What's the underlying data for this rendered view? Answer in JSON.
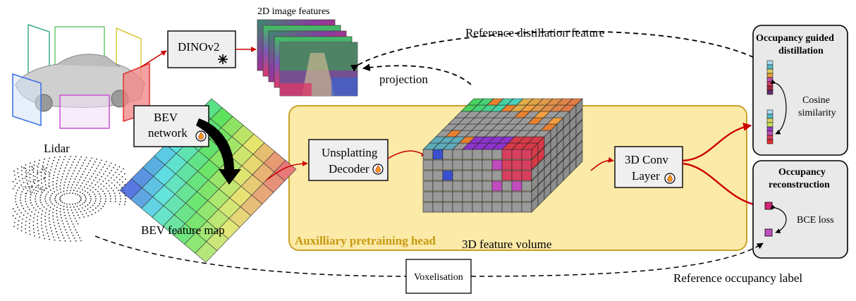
{
  "labels": {
    "image_features": "2D image features",
    "dinov2": "DINOv2",
    "reference_distillation": "Reference distillation feature",
    "projection": "projection",
    "bev_network_line1": "BEV",
    "bev_network_line2": "network",
    "lidar": "Lidar",
    "bev_feature_map": "BEV feature map",
    "unsplatting_line1": "Unsplatting",
    "unsplatting_line2": "Decoder",
    "conv_line1": "3D Conv",
    "conv_line2": "Layer",
    "aux_head": "Auxilliary pretraining head",
    "feature_volume": "3D feature volume",
    "voxelisation": "Voxelisation",
    "reference_occupancy": "Reference occupancy label",
    "occ_guided_line1": "Occupancy guided",
    "occ_guided_line2": "distillation",
    "cosine_line1": "Cosine",
    "cosine_line2": "similarity",
    "occ_recon_line1": "Occupancy",
    "occ_recon_line2": "reconstruction",
    "bce_loss": "BCE loss"
  },
  "icons": {
    "frozen": "snowflake-icon",
    "trainable": "flame-icon"
  },
  "colors": {
    "aux_head_fill": "#fbeaa8",
    "aux_head_border": "#c9a227",
    "arrow_red": "#cc0000",
    "panel_fill": "#e9e9e9",
    "box_fill": "#efefef",
    "voxel_gray": "#9a9a9a"
  }
}
